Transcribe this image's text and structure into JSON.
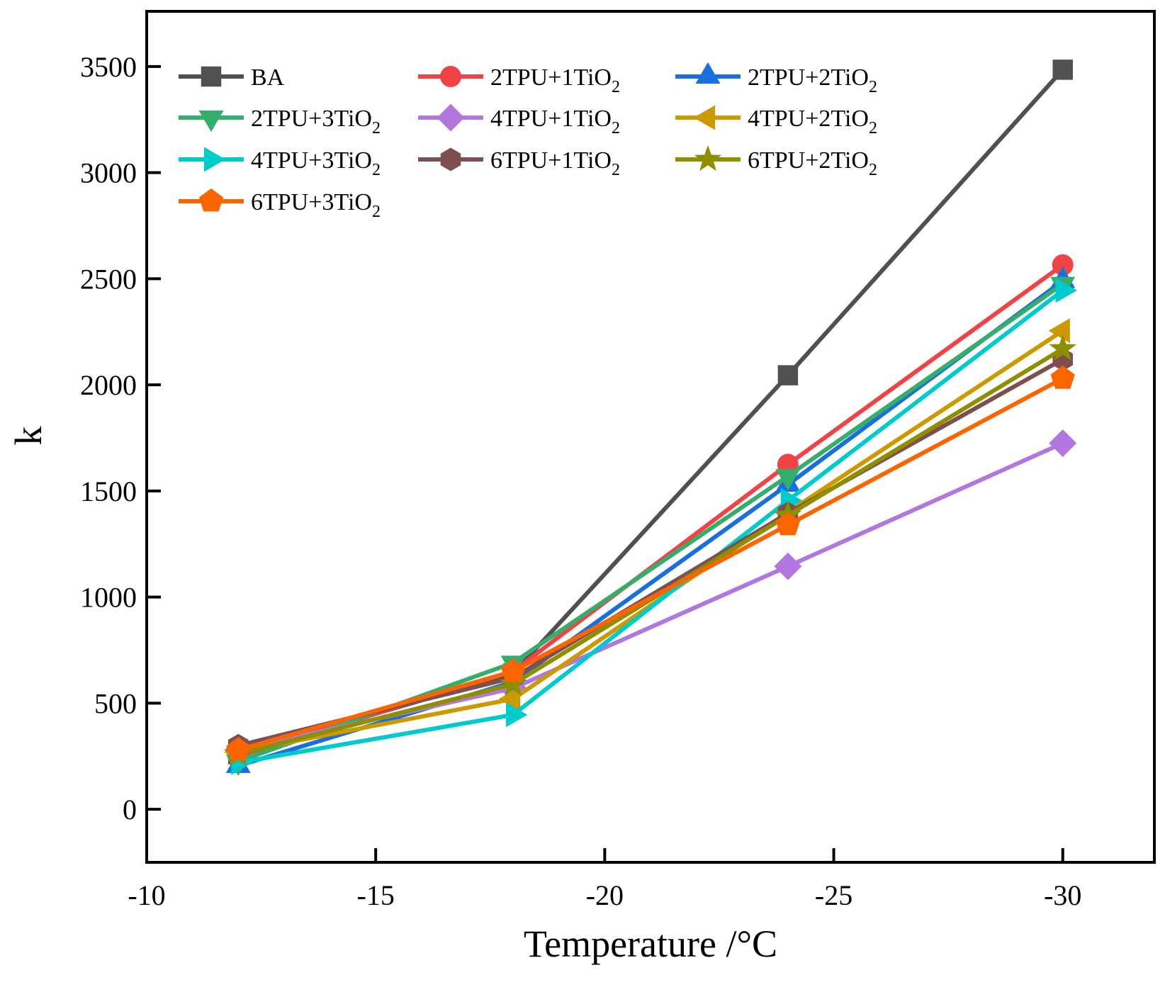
{
  "chart_data": {
    "type": "line",
    "title": "",
    "xlabel": "Temperature /°C",
    "ylabel": "k",
    "xlim": [
      -10,
      -32
    ],
    "ylim": [
      -250,
      3760
    ],
    "xticks": [
      -10,
      -15,
      -20,
      -25,
      -30
    ],
    "yticks": [
      0,
      500,
      1000,
      1500,
      2000,
      2500,
      3000,
      3500
    ],
    "x": [
      -12,
      -18,
      -24,
      -30
    ],
    "legend_position": "top-left",
    "grid": false,
    "series": [
      {
        "name": "BA",
        "sub": "",
        "color": "#505050",
        "marker": "square",
        "values": [
          260,
          640,
          2045,
          3485
        ]
      },
      {
        "name": "2TPU+1TiO",
        "sub": "2",
        "color": "#ef4346",
        "marker": "circle",
        "values": [
          250,
          650,
          1625,
          2565
        ]
      },
      {
        "name": "2TPU+2TiO",
        "sub": "2",
        "color": "#1a6fdf",
        "marker": "triangle-up",
        "values": [
          205,
          600,
          1530,
          2490
        ]
      },
      {
        "name": "2TPU+3TiO",
        "sub": "2",
        "color": "#37ad6b",
        "marker": "triangle-down",
        "values": [
          225,
          690,
          1570,
          2475
        ]
      },
      {
        "name": "4TPU+1TiO",
        "sub": "2",
        "color": "#b177de",
        "marker": "diamond",
        "values": [
          280,
          570,
          1145,
          1725
        ]
      },
      {
        "name": "4TPU+2TiO",
        "sub": "2",
        "color": "#cc9900",
        "marker": "triangle-left",
        "values": [
          270,
          520,
          1400,
          2255
        ]
      },
      {
        "name": "4TPU+3TiO",
        "sub": "2",
        "color": "#00cbcc",
        "marker": "triangle-right",
        "values": [
          220,
          445,
          1455,
          2445
        ]
      },
      {
        "name": "6TPU+1TiO",
        "sub": "2",
        "color": "#7e4f50",
        "marker": "hexagon",
        "values": [
          300,
          620,
          1395,
          2120
        ]
      },
      {
        "name": "6TPU+2TiO",
        "sub": "2",
        "color": "#8e8e00",
        "marker": "star",
        "values": [
          260,
          590,
          1385,
          2170
        ]
      },
      {
        "name": "6TPU+3TiO",
        "sub": "2",
        "color": "#fb6501",
        "marker": "pentagon",
        "values": [
          280,
          650,
          1340,
          2030
        ]
      }
    ]
  }
}
